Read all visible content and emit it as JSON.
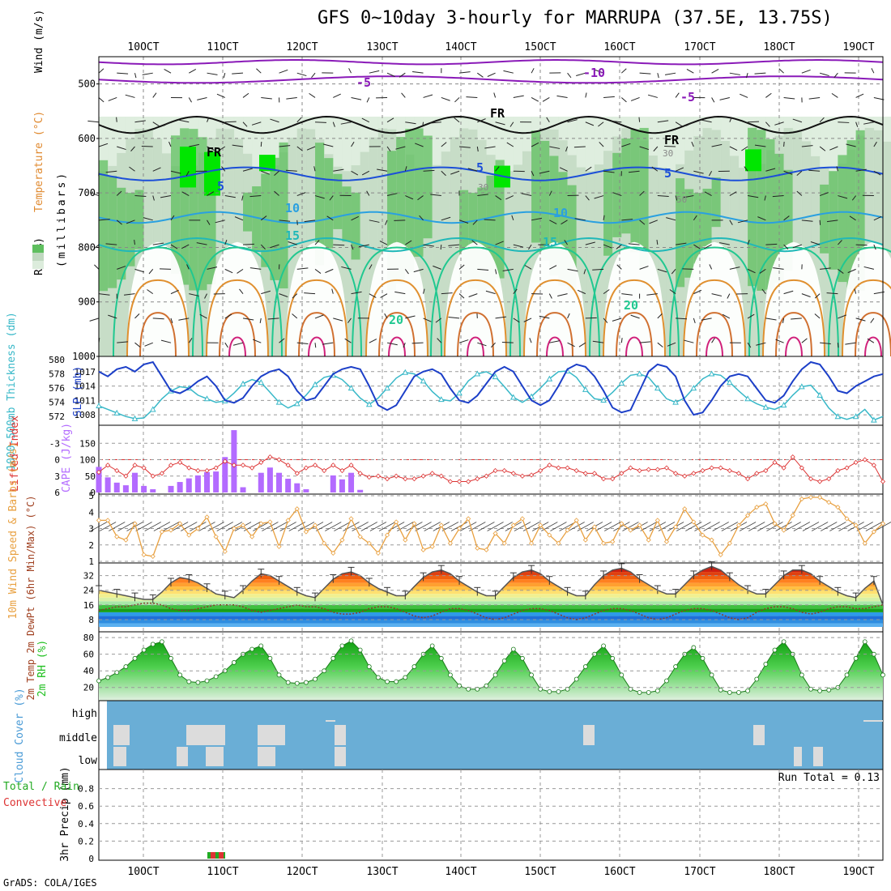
{
  "title": "GFS 0~10day 3-hourly for MARRUPA (37.5E, 13.75S)",
  "credit": "GrADS: COLA/IGES",
  "colors": {
    "rh_light": "#dcecdc",
    "rh_mid": "#c0d8c0",
    "rh_green": "#5fbf5f",
    "rh_bright": "#00e600",
    "slp": "#1c3fc8",
    "thickness": "#38b8c8",
    "cape": "#b36bff",
    "lifted": "#dd3333",
    "wind10": "#e8a040",
    "temp_orange": "#f07010",
    "rh2m_green": "#20c020",
    "cloud_bg": "#6aaed6",
    "cloud_gray": "#dcdcdc",
    "precip_total": "#22aa22",
    "precip_conv": "#dd3333"
  },
  "chart_data": [
    {
      "panel": "cross-section",
      "type": "heatmap",
      "ylabel_parts": [
        "Wind (m/s)",
        "Temperature (°C)",
        "RH (%)"
      ],
      "ylabel_unit": "(millibars)",
      "y_ticks": [
        500,
        600,
        700,
        800,
        900,
        1000
      ],
      "x_ticks": [
        "10OCT",
        "11OCT",
        "12OCT",
        "13OCT",
        "14OCT",
        "15OCT",
        "16OCT",
        "17OCT",
        "18OCT",
        "19OCT"
      ],
      "contour_labels": [
        "-10",
        "-5",
        "-5",
        "FR",
        "FR",
        "FR",
        "5",
        "5",
        "5",
        "10",
        "10",
        "15",
        "15",
        "20",
        "20",
        "30",
        "30",
        "50"
      ]
    },
    {
      "panel": "slp-thickness",
      "type": "line",
      "ylabel_left": "1000-500mb Thickness (dm)",
      "ylabel_right": "SLP (mb)",
      "thickness_ticks": [
        572,
        574,
        576,
        578,
        580
      ],
      "slp_ticks": [
        1008,
        1011,
        1014,
        1017
      ],
      "series": [
        {
          "name": "SLP",
          "values": [
            1017,
            1016,
            1017.5,
            1018,
            1017,
            1018.5,
            1019,
            1016,
            1013,
            1012.5,
            1013.5,
            1015,
            1016,
            1014,
            1011,
            1010.5,
            1011.5,
            1014,
            1016,
            1017,
            1017.5,
            1016,
            1013,
            1011,
            1011.5,
            1014,
            1016.5,
            1017.5,
            1018,
            1017.5,
            1014,
            1010,
            1009,
            1010,
            1013,
            1016,
            1017,
            1017.5,
            1016.5,
            1013.5,
            1011,
            1010.5,
            1012,
            1014.5,
            1017,
            1018,
            1017,
            1014,
            1011,
            1010,
            1011,
            1014,
            1017.5,
            1018.5,
            1018,
            1016,
            1013,
            1009.5,
            1008.5,
            1009,
            1013,
            1017,
            1018.5,
            1018,
            1016,
            1011,
            1008,
            1008.5,
            1011,
            1014,
            1016,
            1016.5,
            1016,
            1013.5,
            1011,
            1010.5,
            1012,
            1015,
            1017.5,
            1019,
            1018.5,
            1016,
            1013,
            1012.5,
            1014,
            1015,
            1016,
            1016.5
          ]
        },
        {
          "name": "Thickness",
          "values": [
            573.5,
            573,
            572.5,
            572,
            571.7,
            571.8,
            573,
            574.5,
            575.6,
            576.2,
            576,
            575,
            574.5,
            574,
            574.2,
            575.3,
            576.6,
            577.2,
            576.8,
            575.4,
            574,
            573.2,
            573.8,
            575,
            576.5,
            577.5,
            577.8,
            577.2,
            576,
            574.6,
            573.7,
            574.6,
            576,
            577.4,
            578.2,
            578,
            577,
            575.5,
            574.4,
            574.2,
            575.3,
            577,
            578,
            578.3,
            577.6,
            576.2,
            574.7,
            574,
            574.8,
            576,
            577.3,
            578.3,
            578.4,
            577.5,
            575.8,
            574.5,
            574.3,
            575.4,
            576.7,
            577.8,
            578,
            577.5,
            576,
            574.5,
            574,
            574.6,
            576,
            577.3,
            578,
            577.8,
            576.8,
            575.6,
            574.5,
            573.8,
            573.3,
            573,
            573.6,
            575,
            576.2,
            576.4,
            575,
            573.2,
            572,
            571.6,
            572,
            573,
            571.5,
            572
          ]
        }
      ]
    },
    {
      "panel": "cape-li",
      "type": "bar",
      "ylabel_left": "Lifted Index",
      "ylabel_right": "CAPE (J/kg)",
      "li_ticks": [
        "-3",
        "0",
        "3",
        "6"
      ],
      "cape_ticks": [
        0,
        50,
        100,
        150
      ],
      "series": [
        {
          "name": "CAPE",
          "values": [
            78,
            46,
            30,
            22,
            60,
            20,
            10,
            0,
            20,
            32,
            43,
            52,
            62,
            64,
            108,
            190,
            16,
            0,
            60,
            76,
            60,
            42,
            28,
            10,
            0,
            0,
            52,
            40,
            60,
            8,
            0,
            0,
            0,
            0,
            0,
            0,
            0,
            0,
            0,
            0,
            0,
            0,
            0,
            0,
            0,
            0,
            0,
            0,
            0,
            0,
            0,
            0,
            0,
            0,
            0,
            0,
            0,
            0,
            0,
            0,
            0,
            0,
            0,
            0,
            0,
            0,
            0,
            0,
            0,
            0,
            0,
            0,
            0,
            0,
            0,
            0,
            0,
            0,
            0,
            0,
            0,
            0,
            0,
            0,
            0,
            0,
            0,
            0
          ]
        },
        {
          "name": "Lifted Index",
          "values": [
            2.3,
            1,
            2,
            3,
            1,
            1.5,
            3,
            2.5,
            1,
            0.5,
            1.5,
            2,
            2,
            1.5,
            0.3,
            1,
            1,
            1.5,
            0.5,
            -0.5,
            0,
            1,
            2.5,
            1.5,
            1,
            2,
            1,
            2,
            1,
            2.5,
            3.2,
            3,
            3.5,
            3,
            3.5,
            3.5,
            3,
            2.5,
            3,
            4,
            4,
            4,
            3.5,
            3,
            2,
            2,
            2.5,
            3,
            2.8,
            2,
            1,
            1.5,
            1.5,
            2,
            2.5,
            2.5,
            3.5,
            3.5,
            2.5,
            1.5,
            2,
            1.8,
            1.8,
            1.5,
            2.5,
            3,
            2.5,
            2,
            1.5,
            1.5,
            2,
            2.5,
            3.5,
            2.5,
            2,
            0.5,
            1.5,
            -0.5,
            1.5,
            3.5,
            4,
            3.5,
            2,
            1.5,
            0.5,
            0,
            1,
            4
          ]
        }
      ]
    },
    {
      "panel": "wind10m",
      "type": "line",
      "ylabel": "10m Wind Speed & Barbs (m/s)",
      "y_ticks": [
        1,
        2,
        3,
        4,
        5
      ],
      "series": [
        {
          "name": "10m Wind",
          "values": [
            3.5,
            3.5,
            2.5,
            2.3,
            3.3,
            1.4,
            1.3,
            2.8,
            2.9,
            3.3,
            2.6,
            3,
            3.7,
            2.5,
            1.6,
            3,
            3.2,
            2.5,
            3.3,
            3.4,
            1.9,
            3.5,
            4.2,
            2.8,
            3.2,
            2.1,
            1.5,
            2.3,
            3.6,
            2.5,
            2.1,
            1.5,
            2.6,
            3.4,
            2.3,
            3.3,
            1.7,
            1.9,
            3.2,
            2.1,
            3,
            3.6,
            1.8,
            1.7,
            2.7,
            2.1,
            3.2,
            3.6,
            2.1,
            3.2,
            2.6,
            2.1,
            2.9,
            3.5,
            2.3,
            3.1,
            2.1,
            2.2,
            3.3,
            2.9,
            3.2,
            2.3,
            3.5,
            2.2,
            3.1,
            4.2,
            3.4,
            2.6,
            2.3,
            1.4,
            2.1,
            3.2,
            3.8,
            4.3,
            4.5,
            3.3,
            2.9,
            3.8,
            4.8,
            4.9,
            4.9,
            4.6,
            4.3,
            3.6,
            3.2,
            2.1,
            2.8,
            3.3
          ]
        }
      ]
    },
    {
      "panel": "temp-dewpt",
      "type": "area",
      "ylabel": "2m Temp 2m DewPt (6hr Min/Max) (°C)",
      "y_ticks": [
        8,
        16,
        24,
        32
      ],
      "series": [
        {
          "name": "2m Temp",
          "values": [
            24,
            23,
            22,
            21,
            20,
            19,
            19,
            23,
            28,
            31,
            30,
            28,
            25,
            22,
            21,
            20,
            24,
            29,
            33,
            32,
            29,
            26,
            23,
            21,
            20,
            25,
            30,
            33,
            34,
            32,
            28,
            25,
            23,
            21,
            21,
            26,
            31,
            34,
            35,
            33,
            29,
            26,
            23,
            21,
            21,
            26,
            31,
            34,
            35,
            33,
            29,
            26,
            23,
            21,
            21,
            27,
            32,
            35,
            36,
            34,
            30,
            27,
            24,
            22,
            22,
            27,
            32,
            35,
            37,
            35,
            31,
            27,
            24,
            22,
            22,
            27,
            32,
            35,
            35,
            33,
            29,
            26,
            23,
            21,
            20,
            25,
            29,
            16
          ]
        },
        {
          "name": "2m DewPt",
          "values": [
            13,
            14,
            15,
            15,
            16,
            17,
            17,
            16,
            14,
            13,
            13,
            14,
            15,
            16,
            16,
            16,
            15,
            13,
            12,
            13,
            14,
            15,
            16,
            15,
            15,
            14,
            12,
            11,
            11,
            12,
            14,
            15,
            15,
            14,
            12,
            10,
            9,
            10,
            12,
            14,
            14,
            13,
            11,
            9,
            8,
            9,
            11,
            13,
            14,
            14,
            13,
            11,
            9,
            8,
            9,
            11,
            13,
            14,
            14,
            13,
            11,
            9,
            8,
            9,
            11,
            13,
            14,
            14,
            13,
            11,
            9,
            8,
            9,
            12,
            14,
            15,
            15,
            14,
            12,
            11,
            12,
            14,
            15,
            15,
            14,
            14,
            15,
            16
          ]
        }
      ]
    },
    {
      "panel": "rh2m",
      "type": "area",
      "ylabel": "2m RH (%)",
      "y_ticks": [
        20,
        40,
        60,
        80
      ],
      "series": [
        {
          "name": "2m RH",
          "values": [
            28,
            32,
            38,
            45,
            55,
            65,
            72,
            75,
            55,
            35,
            27,
            26,
            28,
            33,
            40,
            50,
            60,
            66,
            70,
            55,
            35,
            26,
            25,
            26,
            30,
            40,
            55,
            70,
            76,
            65,
            45,
            32,
            27,
            27,
            32,
            45,
            60,
            70,
            55,
            35,
            22,
            18,
            18,
            22,
            35,
            52,
            66,
            55,
            35,
            18,
            15,
            15,
            18,
            30,
            45,
            60,
            70,
            55,
            35,
            18,
            14,
            14,
            16,
            28,
            45,
            60,
            68,
            55,
            35,
            17,
            14,
            14,
            16,
            30,
            48,
            65,
            75,
            60,
            35,
            18,
            16,
            17,
            20,
            35,
            55,
            75,
            60,
            35
          ]
        }
      ]
    },
    {
      "panel": "cloud",
      "type": "bar",
      "ylabel": "Cloud Cover (%)",
      "levels": [
        "high",
        "middle",
        "low"
      ]
    },
    {
      "panel": "precip",
      "type": "bar",
      "ylabel_left": "Total / Rain",
      "ylabel_left2": "Convective",
      "ylabel": "3hr Precip (mm)",
      "y_ticks": [
        0,
        0.2,
        0.4,
        0.6,
        0.8
      ],
      "annotation": "Run Total = 0.13",
      "x_ticks": [
        "10OCT",
        "11OCT",
        "12OCT",
        "13OCT",
        "14OCT",
        "15OCT",
        "16OCT",
        "17OCT",
        "18OCT",
        "19OCT"
      ]
    }
  ]
}
